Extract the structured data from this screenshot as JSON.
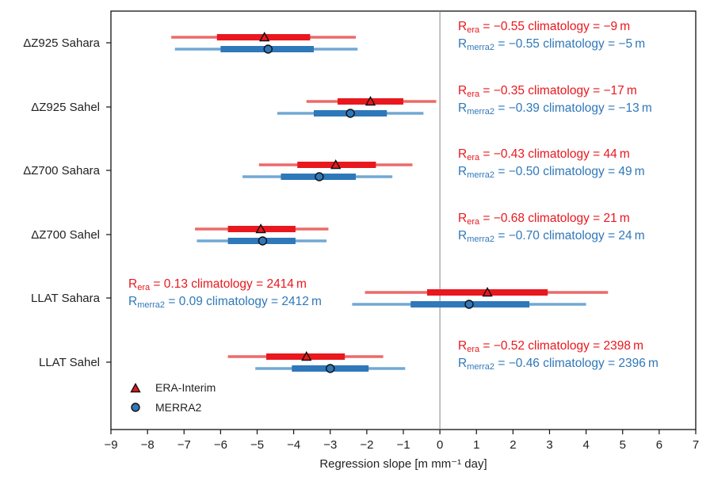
{
  "chart_data": {
    "type": "scatter",
    "xlabel": "Regression slope [m mm⁻¹ day]",
    "xlim": [
      -9,
      7
    ],
    "x_ticks": [
      "−9",
      "−8",
      "−7",
      "−6",
      "−5",
      "−4",
      "−3",
      "−2",
      "−1",
      "0",
      "1",
      "2",
      "3",
      "4",
      "5",
      "6",
      "7"
    ],
    "categories": [
      "ΔZ925 Sahara",
      "ΔZ925 Sahel",
      "ΔZ700 Sahara",
      "ΔZ700 Sahel",
      "LLAT Sahara",
      "LLAT Sahel"
    ],
    "reference_line_x": 0,
    "legend_position": "bottom-left",
    "colors": {
      "era": "#e8181e",
      "era_light": "#ec6a6a",
      "merra": "#2f78b9",
      "merra_light": "#72a8d4"
    },
    "series": [
      {
        "name": "ERA-Interim",
        "marker": "triangle",
        "points": [
          {
            "x": -4.8,
            "outer": [
              -7.35,
              -2.3
            ],
            "inner": [
              -6.1,
              -3.55
            ]
          },
          {
            "x": -1.9,
            "outer": [
              -3.65,
              -0.1
            ],
            "inner": [
              -2.8,
              -1.0
            ]
          },
          {
            "x": -2.85,
            "outer": [
              -4.95,
              -0.75
            ],
            "inner": [
              -3.9,
              -1.75
            ]
          },
          {
            "x": -4.9,
            "outer": [
              -6.7,
              -3.05
            ],
            "inner": [
              -5.8,
              -3.95
            ]
          },
          {
            "x": 1.3,
            "outer": [
              -2.05,
              4.6
            ],
            "inner": [
              -0.35,
              2.95
            ]
          },
          {
            "x": -3.65,
            "outer": [
              -5.8,
              -1.55
            ],
            "inner": [
              -4.75,
              -2.6
            ]
          }
        ]
      },
      {
        "name": "MERRA2",
        "marker": "circle",
        "points": [
          {
            "x": -4.7,
            "outer": [
              -7.25,
              -2.25
            ],
            "inner": [
              -6.0,
              -3.45
            ]
          },
          {
            "x": -2.45,
            "outer": [
              -4.45,
              -0.45
            ],
            "inner": [
              -3.45,
              -1.45
            ]
          },
          {
            "x": -3.3,
            "outer": [
              -5.4,
              -1.3
            ],
            "inner": [
              -4.35,
              -2.3
            ]
          },
          {
            "x": -4.85,
            "outer": [
              -6.65,
              -3.1
            ],
            "inner": [
              -5.8,
              -3.95
            ]
          },
          {
            "x": 0.8,
            "outer": [
              -2.4,
              4.0
            ],
            "inner": [
              -0.8,
              2.45
            ]
          },
          {
            "x": -3.0,
            "outer": [
              -5.05,
              -0.95
            ],
            "inner": [
              -4.05,
              -1.95
            ]
          }
        ]
      }
    ],
    "annotations": [
      {
        "era_r": "−0.55",
        "era_clim": "−9 m",
        "merra_r": "−0.55",
        "merra_clim": "−5 m"
      },
      {
        "era_r": "−0.35",
        "era_clim": "−17 m",
        "merra_r": "−0.39",
        "merra_clim": "−13 m"
      },
      {
        "era_r": "−0.43",
        "era_clim": "44 m",
        "merra_r": "−0.50",
        "merra_clim": "49 m"
      },
      {
        "era_r": "−0.68",
        "era_clim": "21 m",
        "merra_r": "−0.70",
        "merra_clim": "24 m"
      },
      {
        "era_r": "0.13",
        "era_clim": "2414 m",
        "merra_r": "0.09",
        "merra_clim": "2412 m"
      },
      {
        "era_r": "−0.52",
        "era_clim": "2398 m",
        "merra_r": "−0.46",
        "merra_clim": "2396 m"
      }
    ],
    "annotation_labels": {
      "r_symbol": "R",
      "era_sub": "era",
      "merra_sub": "merra2",
      "clim_word": "climatology"
    }
  }
}
